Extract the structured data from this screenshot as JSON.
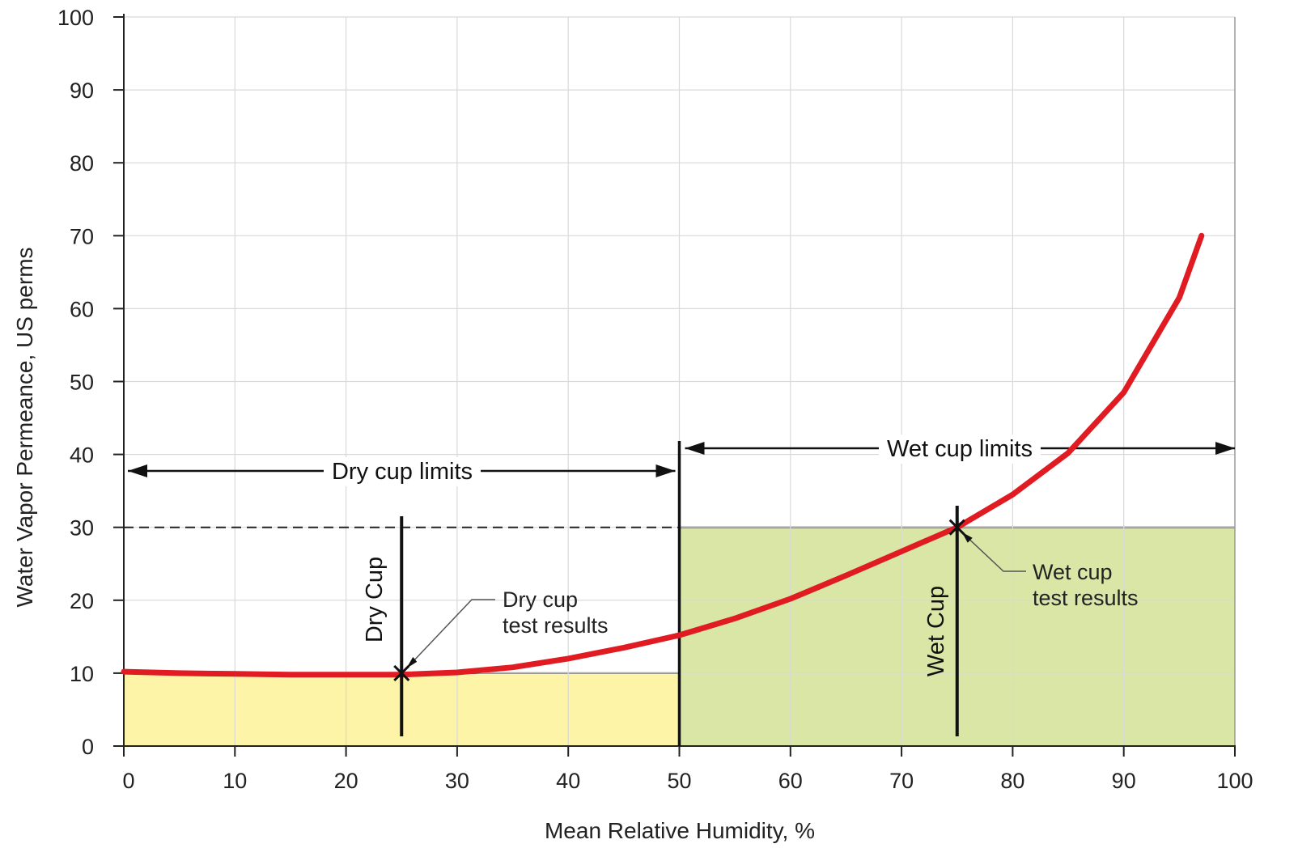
{
  "chart_data": {
    "type": "line",
    "xlabel": "Mean Relative Humidity, %",
    "ylabel": "Water Vapor Permeance, US perms",
    "xlim": [
      0,
      100
    ],
    "ylim": [
      0,
      100
    ],
    "grid": true,
    "x_ticks": [
      "0",
      "10",
      "20",
      "30",
      "40",
      "50",
      "60",
      "70",
      "80",
      "90",
      "100"
    ],
    "y_ticks": [
      "0",
      "10",
      "20",
      "30",
      "40",
      "50",
      "60",
      "70",
      "80",
      "90",
      "100"
    ],
    "series": [
      {
        "color": "#e01b22",
        "x": [
          0,
          5,
          10,
          15,
          20,
          25,
          30,
          35,
          40,
          45,
          50,
          55,
          60,
          65,
          70,
          75,
          80,
          85,
          90,
          95,
          97
        ],
        "y": [
          10.2,
          10.0,
          9.9,
          9.8,
          9.8,
          9.8,
          10.1,
          10.8,
          12.0,
          13.5,
          15.2,
          17.5,
          20.2,
          23.4,
          26.7,
          30.0,
          34.5,
          40.2,
          48.5,
          61.5,
          70.0
        ]
      }
    ],
    "regions": [
      {
        "label": "Dry cup limits",
        "x_range": [
          0,
          50
        ],
        "fill_y_max": 10,
        "color": "#fdf4a7"
      },
      {
        "label": "Wet cup limits",
        "x_range": [
          50,
          100
        ],
        "fill_y_max": 30,
        "color": "#d9e6a6"
      }
    ],
    "reference_line": {
      "y": 30,
      "x_range": [
        0,
        50
      ],
      "style": "dashed"
    },
    "markers": [
      {
        "label": "Dry Cup",
        "x": 25,
        "y": 10,
        "test_label": [
          "Dry cup",
          "test results"
        ]
      },
      {
        "label": "Wet Cup",
        "x": 75,
        "y": 30,
        "test_label": [
          "Wet cup",
          "test results"
        ]
      }
    ],
    "colors": {
      "curve": "#e01b22",
      "dry_fill": "#fdf4a7",
      "wet_fill": "#d9e6a6",
      "grid": "#d9d9d9"
    }
  }
}
